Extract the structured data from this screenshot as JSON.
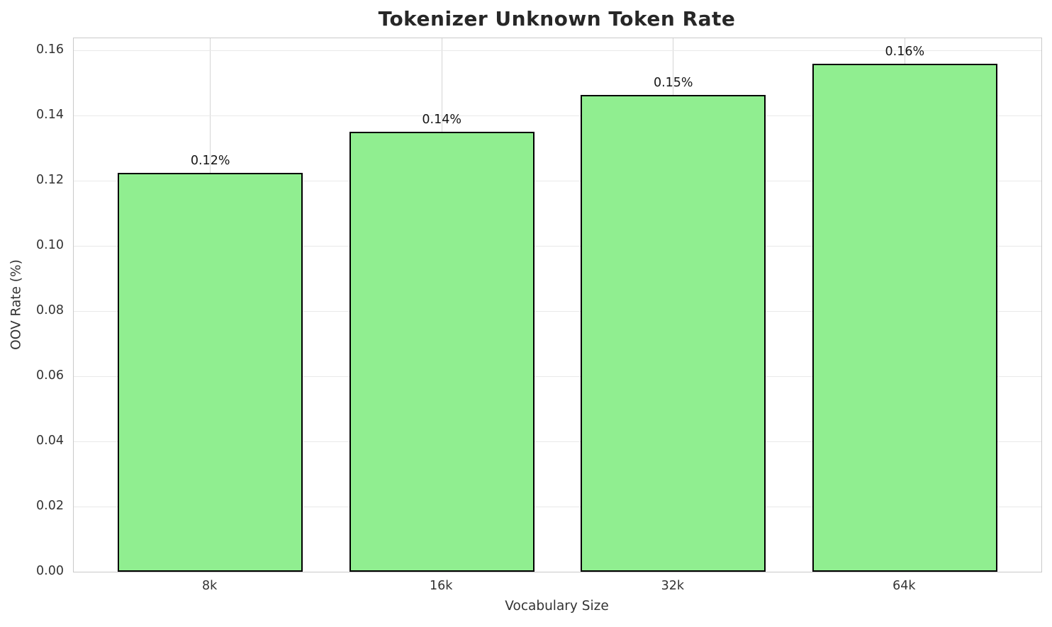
{
  "title": "Tokenizer Unknown Token Rate",
  "chart_data": {
    "type": "bar",
    "title": "Tokenizer Unknown Token Rate",
    "xlabel": "Vocabulary Size",
    "ylabel": "OOV Rate (%)",
    "categories": [
      "8k",
      "16k",
      "32k",
      "64k"
    ],
    "values": [
      0.1225,
      0.135,
      0.1465,
      0.156
    ],
    "bar_value_labels": [
      "0.12%",
      "0.14%",
      "0.15%",
      "0.16%"
    ],
    "ylim": [
      0,
      0.1638
    ],
    "ytick_values": [
      0.0,
      0.02,
      0.04,
      0.06,
      0.08,
      0.1,
      0.12,
      0.14,
      0.16
    ],
    "ytick_labels": [
      "0.00",
      "0.02",
      "0.04",
      "0.06",
      "0.08",
      "0.10",
      "0.12",
      "0.14",
      "0.16"
    ],
    "grid": true,
    "legend": false,
    "bar_color": "#90EE90",
    "bar_edge_color": "#000000",
    "grid_color_h": "#e9e9e9",
    "grid_color_v": "#d4d4d4",
    "background_color": "#ffffff"
  }
}
